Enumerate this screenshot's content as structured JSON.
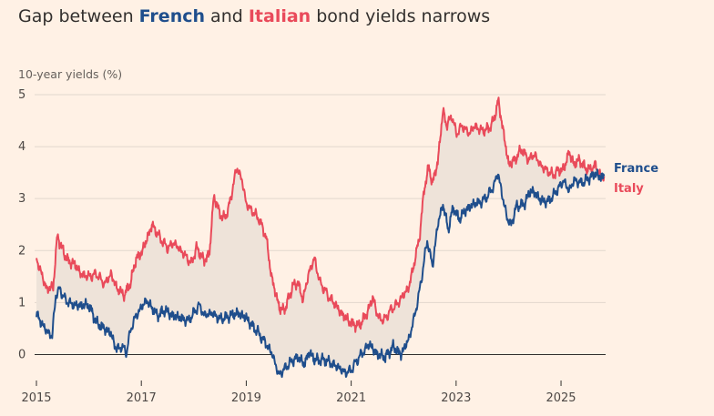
{
  "title": {
    "prefix": "Gap between ",
    "series1": "French",
    "middle": " and ",
    "series2": "Italian",
    "suffix": " bond yields narrows"
  },
  "colors": {
    "france": "#1f4e8c",
    "italy": "#e94a5a",
    "gap_fill": "#eee3d9",
    "grid": "#e2d7cd",
    "zero_line": "#33302e",
    "background": "#fff1e5"
  },
  "chart_data": {
    "type": "line",
    "ylabel": "10-year yields (%)",
    "xlim": [
      2015.0,
      2025.85
    ],
    "ylim": [
      -0.5,
      5.0
    ],
    "y_ticks": [
      0,
      1,
      2,
      3,
      4,
      5
    ],
    "x_ticks": [
      2015,
      2017,
      2019,
      2021,
      2023,
      2025
    ],
    "grid": "horizontal",
    "fill_between_series": true,
    "legend": "right, end of lines",
    "series": [
      {
        "name": "France",
        "color_key": "france",
        "points": [
          [
            2015.0,
            0.8
          ],
          [
            2015.08,
            0.62
          ],
          [
            2015.2,
            0.45
          ],
          [
            2015.3,
            0.35
          ],
          [
            2015.37,
            1.15
          ],
          [
            2015.45,
            1.25
          ],
          [
            2015.55,
            1.05
          ],
          [
            2015.7,
            0.95
          ],
          [
            2015.85,
            0.95
          ],
          [
            2016.0,
            0.95
          ],
          [
            2016.15,
            0.6
          ],
          [
            2016.3,
            0.5
          ],
          [
            2016.42,
            0.4
          ],
          [
            2016.52,
            0.1
          ],
          [
            2016.62,
            0.15
          ],
          [
            2016.72,
            0.05
          ],
          [
            2016.8,
            0.5
          ],
          [
            2016.9,
            0.75
          ],
          [
            2017.1,
            1.05
          ],
          [
            2017.2,
            0.9
          ],
          [
            2017.3,
            0.75
          ],
          [
            2017.45,
            0.85
          ],
          [
            2017.6,
            0.75
          ],
          [
            2017.75,
            0.7
          ],
          [
            2017.9,
            0.65
          ],
          [
            2018.1,
            0.95
          ],
          [
            2018.2,
            0.75
          ],
          [
            2018.35,
            0.8
          ],
          [
            2018.5,
            0.68
          ],
          [
            2018.7,
            0.75
          ],
          [
            2018.85,
            0.8
          ],
          [
            2019.0,
            0.7
          ],
          [
            2019.2,
            0.45
          ],
          [
            2019.35,
            0.25
          ],
          [
            2019.5,
            0.0
          ],
          [
            2019.62,
            -0.4
          ],
          [
            2019.75,
            -0.25
          ],
          [
            2019.9,
            -0.1
          ],
          [
            2020.0,
            -0.05
          ],
          [
            2020.1,
            -0.2
          ],
          [
            2020.2,
            0.05
          ],
          [
            2020.3,
            -0.1
          ],
          [
            2020.45,
            -0.1
          ],
          [
            2020.6,
            -0.15
          ],
          [
            2020.75,
            -0.25
          ],
          [
            2020.9,
            -0.35
          ],
          [
            2021.0,
            -0.3
          ],
          [
            2021.15,
            -0.05
          ],
          [
            2021.35,
            0.2
          ],
          [
            2021.5,
            0.0
          ],
          [
            2021.65,
            -0.05
          ],
          [
            2021.8,
            0.15
          ],
          [
            2021.95,
            0.0
          ],
          [
            2022.1,
            0.3
          ],
          [
            2022.2,
            0.7
          ],
          [
            2022.3,
            1.2
          ],
          [
            2022.45,
            2.2
          ],
          [
            2022.55,
            1.7
          ],
          [
            2022.65,
            2.5
          ],
          [
            2022.75,
            2.9
          ],
          [
            2022.85,
            2.4
          ],
          [
            2022.95,
            2.85
          ],
          [
            2023.05,
            2.6
          ],
          [
            2023.2,
            2.8
          ],
          [
            2023.35,
            2.9
          ],
          [
            2023.5,
            2.95
          ],
          [
            2023.6,
            3.05
          ],
          [
            2023.72,
            3.25
          ],
          [
            2023.8,
            3.5
          ],
          [
            2023.88,
            3.05
          ],
          [
            2023.98,
            2.6
          ],
          [
            2024.05,
            2.5
          ],
          [
            2024.15,
            2.85
          ],
          [
            2024.3,
            2.9
          ],
          [
            2024.42,
            3.15
          ],
          [
            2024.52,
            3.1
          ],
          [
            2024.62,
            2.95
          ],
          [
            2024.75,
            2.95
          ],
          [
            2024.85,
            3.05
          ],
          [
            2024.95,
            3.2
          ],
          [
            2025.05,
            3.35
          ],
          [
            2025.15,
            3.15
          ],
          [
            2025.25,
            3.35
          ],
          [
            2025.4,
            3.3
          ],
          [
            2025.55,
            3.4
          ],
          [
            2025.65,
            3.48
          ],
          [
            2025.75,
            3.4
          ],
          [
            2025.82,
            3.45
          ]
        ]
      },
      {
        "name": "Italy",
        "color_key": "italy",
        "points": [
          [
            2015.0,
            1.85
          ],
          [
            2015.08,
            1.6
          ],
          [
            2015.2,
            1.25
          ],
          [
            2015.32,
            1.3
          ],
          [
            2015.4,
            2.3
          ],
          [
            2015.48,
            2.05
          ],
          [
            2015.6,
            1.8
          ],
          [
            2015.72,
            1.75
          ],
          [
            2015.85,
            1.55
          ],
          [
            2016.0,
            1.5
          ],
          [
            2016.15,
            1.55
          ],
          [
            2016.3,
            1.35
          ],
          [
            2016.42,
            1.55
          ],
          [
            2016.55,
            1.25
          ],
          [
            2016.68,
            1.15
          ],
          [
            2016.8,
            1.4
          ],
          [
            2016.9,
            1.85
          ],
          [
            2017.0,
            1.95
          ],
          [
            2017.1,
            2.2
          ],
          [
            2017.2,
            2.5
          ],
          [
            2017.35,
            2.25
          ],
          [
            2017.5,
            2.05
          ],
          [
            2017.62,
            2.15
          ],
          [
            2017.8,
            1.95
          ],
          [
            2017.95,
            1.75
          ],
          [
            2018.05,
            2.05
          ],
          [
            2018.2,
            1.8
          ],
          [
            2018.3,
            1.95
          ],
          [
            2018.38,
            3.05
          ],
          [
            2018.45,
            2.85
          ],
          [
            2018.55,
            2.6
          ],
          [
            2018.65,
            2.75
          ],
          [
            2018.75,
            3.25
          ],
          [
            2018.82,
            3.6
          ],
          [
            2018.92,
            3.35
          ],
          [
            2019.0,
            2.9
          ],
          [
            2019.12,
            2.75
          ],
          [
            2019.25,
            2.6
          ],
          [
            2019.38,
            2.25
          ],
          [
            2019.48,
            1.5
          ],
          [
            2019.58,
            1.1
          ],
          [
            2019.65,
            0.85
          ],
          [
            2019.75,
            0.9
          ],
          [
            2019.88,
            1.3
          ],
          [
            2019.98,
            1.4
          ],
          [
            2020.08,
            1.05
          ],
          [
            2020.2,
            1.6
          ],
          [
            2020.3,
            1.85
          ],
          [
            2020.4,
            1.4
          ],
          [
            2020.55,
            1.15
          ],
          [
            2020.7,
            0.95
          ],
          [
            2020.85,
            0.75
          ],
          [
            2021.0,
            0.6
          ],
          [
            2021.15,
            0.55
          ],
          [
            2021.3,
            0.8
          ],
          [
            2021.42,
            1.1
          ],
          [
            2021.5,
            0.75
          ],
          [
            2021.62,
            0.65
          ],
          [
            2021.75,
            0.85
          ],
          [
            2021.9,
            1.0
          ],
          [
            2022.0,
            1.15
          ],
          [
            2022.1,
            1.3
          ],
          [
            2022.2,
            1.75
          ],
          [
            2022.3,
            2.25
          ],
          [
            2022.4,
            3.25
          ],
          [
            2022.48,
            3.6
          ],
          [
            2022.55,
            3.3
          ],
          [
            2022.65,
            3.7
          ],
          [
            2022.75,
            4.7
          ],
          [
            2022.82,
            4.4
          ],
          [
            2022.92,
            4.6
          ],
          [
            2023.0,
            4.25
          ],
          [
            2023.12,
            4.4
          ],
          [
            2023.25,
            4.25
          ],
          [
            2023.35,
            4.4
          ],
          [
            2023.5,
            4.3
          ],
          [
            2023.62,
            4.35
          ],
          [
            2023.72,
            4.5
          ],
          [
            2023.8,
            4.9
          ],
          [
            2023.9,
            4.3
          ],
          [
            2024.0,
            3.65
          ],
          [
            2024.12,
            3.75
          ],
          [
            2024.25,
            3.95
          ],
          [
            2024.38,
            3.75
          ],
          [
            2024.5,
            3.85
          ],
          [
            2024.6,
            3.65
          ],
          [
            2024.72,
            3.55
          ],
          [
            2024.85,
            3.45
          ],
          [
            2024.95,
            3.55
          ],
          [
            2025.05,
            3.55
          ],
          [
            2025.15,
            3.9
          ],
          [
            2025.25,
            3.65
          ],
          [
            2025.35,
            3.75
          ],
          [
            2025.45,
            3.6
          ],
          [
            2025.55,
            3.55
          ],
          [
            2025.65,
            3.65
          ],
          [
            2025.75,
            3.45
          ],
          [
            2025.82,
            3.4
          ]
        ]
      }
    ]
  }
}
